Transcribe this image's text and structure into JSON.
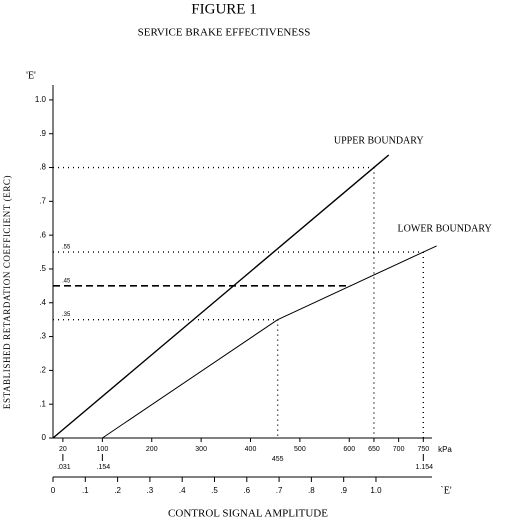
{
  "chart_data": {
    "type": "line",
    "title": "FIGURE 1",
    "subtitle": "SERVICE BRAKE EFFECTIVENESS",
    "y_label": "ESTABLISHED RETARDATION COEFFICIENT (ERC)",
    "y_unit_label": "'E'",
    "x_unit_label": "kPa",
    "x2_label": "CONTROL SIGNAL AMPLITUDE",
    "x2_unit_label": "`E'",
    "xlim": [
      0,
      800
    ],
    "xticks": [
      20,
      100,
      200,
      300,
      400,
      500,
      600,
      650,
      700,
      750
    ],
    "x2lim": [
      0,
      1.223
    ],
    "x2ticks": [
      0,
      {
        "value": 0.1,
        "label": ".1"
      },
      {
        "value": 0.2,
        "label": ".2"
      },
      {
        "value": 0.3,
        "label": ".3"
      },
      {
        "value": 0.4,
        "label": ".4"
      },
      {
        "value": 0.5,
        "label": ".5"
      },
      {
        "value": 0.6,
        "label": ".6"
      },
      {
        "value": 0.7,
        "label": ".7"
      },
      {
        "value": 0.8,
        "label": ".8"
      },
      {
        "value": 0.9,
        "label": ".9"
      },
      {
        "value": 1.0,
        "label": "1.0"
      }
    ],
    "ylim": [
      0,
      1.05
    ],
    "yticks": [
      0,
      {
        "value": 0.1,
        "label": ".1"
      },
      {
        "value": 0.2,
        "label": ".2"
      },
      {
        "value": 0.3,
        "label": ".3"
      },
      {
        "value": 0.4,
        "label": ".4"
      },
      {
        "value": 0.5,
        "label": ".5"
      },
      {
        "value": 0.6,
        "label": ".6"
      },
      {
        "value": 0.7,
        "label": ".7"
      },
      {
        "value": 0.8,
        "label": ".8"
      },
      {
        "value": 0.9,
        "label": ".9"
      },
      {
        "value": 1.0,
        "label": "1.0"
      }
    ],
    "kpa_signal_pairs": [
      {
        "kpa": 20,
        "value": 0.031,
        "label": ".031"
      },
      {
        "kpa": 100,
        "value": 0.154,
        "label": ".154"
      },
      {
        "kpa": 750,
        "value": 1.154,
        "label": "1.154"
      }
    ],
    "series": [
      {
        "name": "UPPER BOUNDARY",
        "color": "#000000",
        "x": [
          0,
          680
        ],
        "values": [
          0,
          0.837
        ]
      },
      {
        "name": "LOWER BOUNDARY",
        "color": "#000000",
        "x": [
          100,
          455,
          750,
          777
        ],
        "values": [
          0,
          0.35,
          0.55,
          0.568
        ]
      }
    ],
    "reference_lines": [
      {
        "x": 650,
        "y": 0.8
      },
      {
        "x": 750,
        "y": 0.55,
        "y_label": ".55"
      },
      {
        "x": 602,
        "y": 0.45,
        "y_label": ".45",
        "style": "dashed"
      },
      {
        "x": 455,
        "y": 0.35,
        "y_label": ".35",
        "x_label": "455"
      }
    ]
  }
}
